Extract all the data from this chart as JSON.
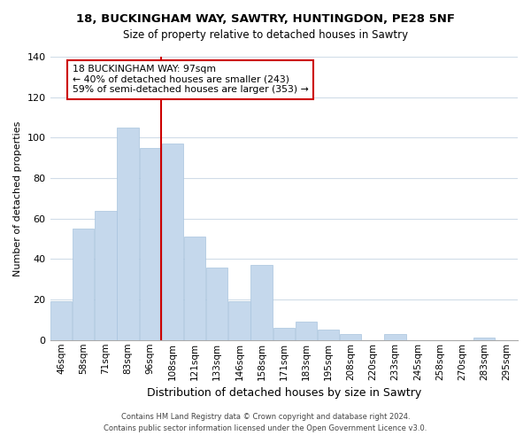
{
  "title": "18, BUCKINGHAM WAY, SAWTRY, HUNTINGDON, PE28 5NF",
  "subtitle": "Size of property relative to detached houses in Sawtry",
  "xlabel": "Distribution of detached houses by size in Sawtry",
  "ylabel": "Number of detached properties",
  "bar_labels": [
    "46sqm",
    "58sqm",
    "71sqm",
    "83sqm",
    "96sqm",
    "108sqm",
    "121sqm",
    "133sqm",
    "146sqm",
    "158sqm",
    "171sqm",
    "183sqm",
    "195sqm",
    "208sqm",
    "220sqm",
    "233sqm",
    "245sqm",
    "258sqm",
    "270sqm",
    "283sqm",
    "295sqm"
  ],
  "bar_values": [
    19,
    55,
    64,
    105,
    95,
    97,
    51,
    36,
    19,
    37,
    6,
    9,
    5,
    3,
    0,
    3,
    0,
    0,
    0,
    1,
    0
  ],
  "bar_color": "#c5d8ec",
  "bar_edge_color": "#a8c4de",
  "marker_index": 4,
  "marker_color": "#cc0000",
  "annotation_title": "18 BUCKINGHAM WAY: 97sqm",
  "annotation_line1": "← 40% of detached houses are smaller (243)",
  "annotation_line2": "59% of semi-detached houses are larger (353) →",
  "annotation_box_color": "#ffffff",
  "annotation_box_edge": "#cc0000",
  "ylim": [
    0,
    140
  ],
  "yticks": [
    0,
    20,
    40,
    60,
    80,
    100,
    120,
    140
  ],
  "bg_color": "#ffffff",
  "grid_color": "#d0dce8",
  "footer1": "Contains HM Land Registry data © Crown copyright and database right 2024.",
  "footer2": "Contains public sector information licensed under the Open Government Licence v3.0."
}
